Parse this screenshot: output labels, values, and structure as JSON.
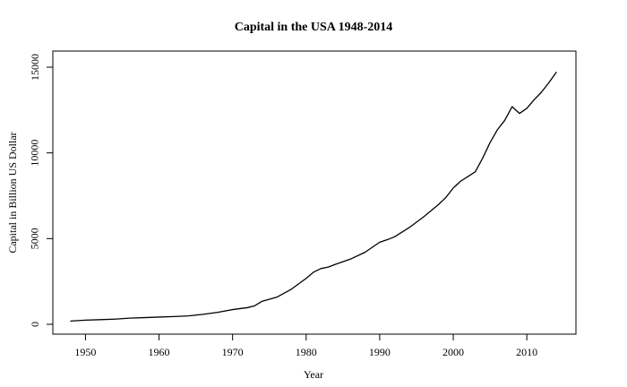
{
  "chart_data": {
    "type": "line",
    "title": "Capital in the USA 1948-2014",
    "xlabel": "Year",
    "ylabel": "Capital in Billion US Dollar",
    "xlim": [
      1948,
      2014
    ],
    "ylim": [
      0,
      15000
    ],
    "x_ticks": [
      1950,
      1960,
      1970,
      1980,
      1990,
      2000,
      2010
    ],
    "y_ticks": [
      0,
      5000,
      10000,
      15000
    ],
    "grid": false,
    "legend": "none",
    "line_color": "#000000",
    "series": [
      {
        "x": [
          1948,
          1950,
          1952,
          1954,
          1956,
          1958,
          1960,
          1962,
          1964,
          1966,
          1968,
          1970,
          1972,
          1973,
          1974,
          1976,
          1978,
          1980,
          1981,
          1982,
          1983,
          1984,
          1986,
          1988,
          1990,
          1991,
          1992,
          1994,
          1996,
          1998,
          1999,
          2000,
          2001,
          2002,
          2003,
          2004,
          2005,
          2006,
          2007,
          2008,
          2009,
          2010,
          2011,
          2012,
          2013,
          2014
        ],
        "values": [
          190,
          240,
          270,
          300,
          360,
          390,
          420,
          450,
          490,
          580,
          700,
          860,
          970,
          1080,
          1340,
          1580,
          2050,
          2680,
          3040,
          3250,
          3340,
          3500,
          3800,
          4200,
          4790,
          4930,
          5100,
          5640,
          6280,
          6990,
          7400,
          7950,
          8350,
          8620,
          8900,
          9700,
          10600,
          11350,
          11900,
          12700,
          12300,
          12600,
          13100,
          13550,
          14100,
          14700
        ]
      }
    ]
  }
}
